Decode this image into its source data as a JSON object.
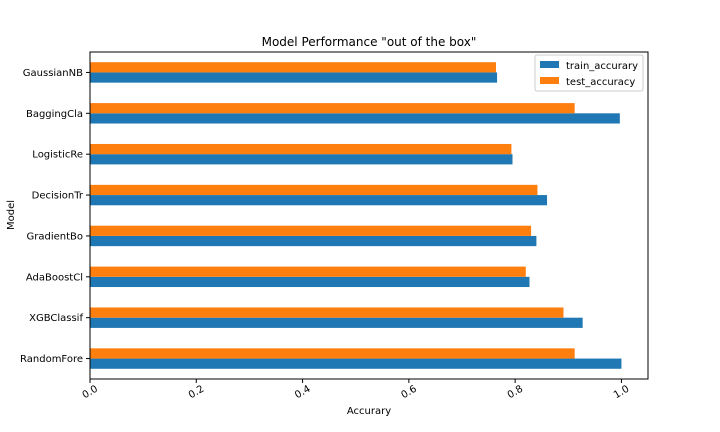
{
  "chart_data": {
    "type": "bar",
    "orientation": "horizontal",
    "title": "Model Performance \"out of the box\"",
    "xlabel": "Accurary",
    "ylabel": "Model",
    "xlim": [
      0.0,
      1.05
    ],
    "xticks": [
      0.0,
      0.2,
      0.4,
      0.6,
      0.8,
      1.0
    ],
    "xtick_labels": [
      "0.0",
      "0.2",
      "0.4",
      "0.6",
      "0.8",
      "1.0"
    ],
    "grid": false,
    "legend_position": "top-right",
    "categories": [
      "RandomFore",
      "XGBClassif",
      "AdaBoostCl",
      "GradientBo",
      "DecisionTr",
      "LogisticRe",
      "BaggingCla",
      "GaussianNB"
    ],
    "series": [
      {
        "name": "train_accurary",
        "color": "#1f77b4",
        "values": [
          1.0,
          0.927,
          0.827,
          0.84,
          0.86,
          0.795,
          0.997,
          0.766
        ]
      },
      {
        "name": "test_accuracy",
        "color": "#ff7f0e",
        "values": [
          0.912,
          0.891,
          0.82,
          0.83,
          0.842,
          0.793,
          0.912,
          0.764
        ]
      }
    ]
  }
}
